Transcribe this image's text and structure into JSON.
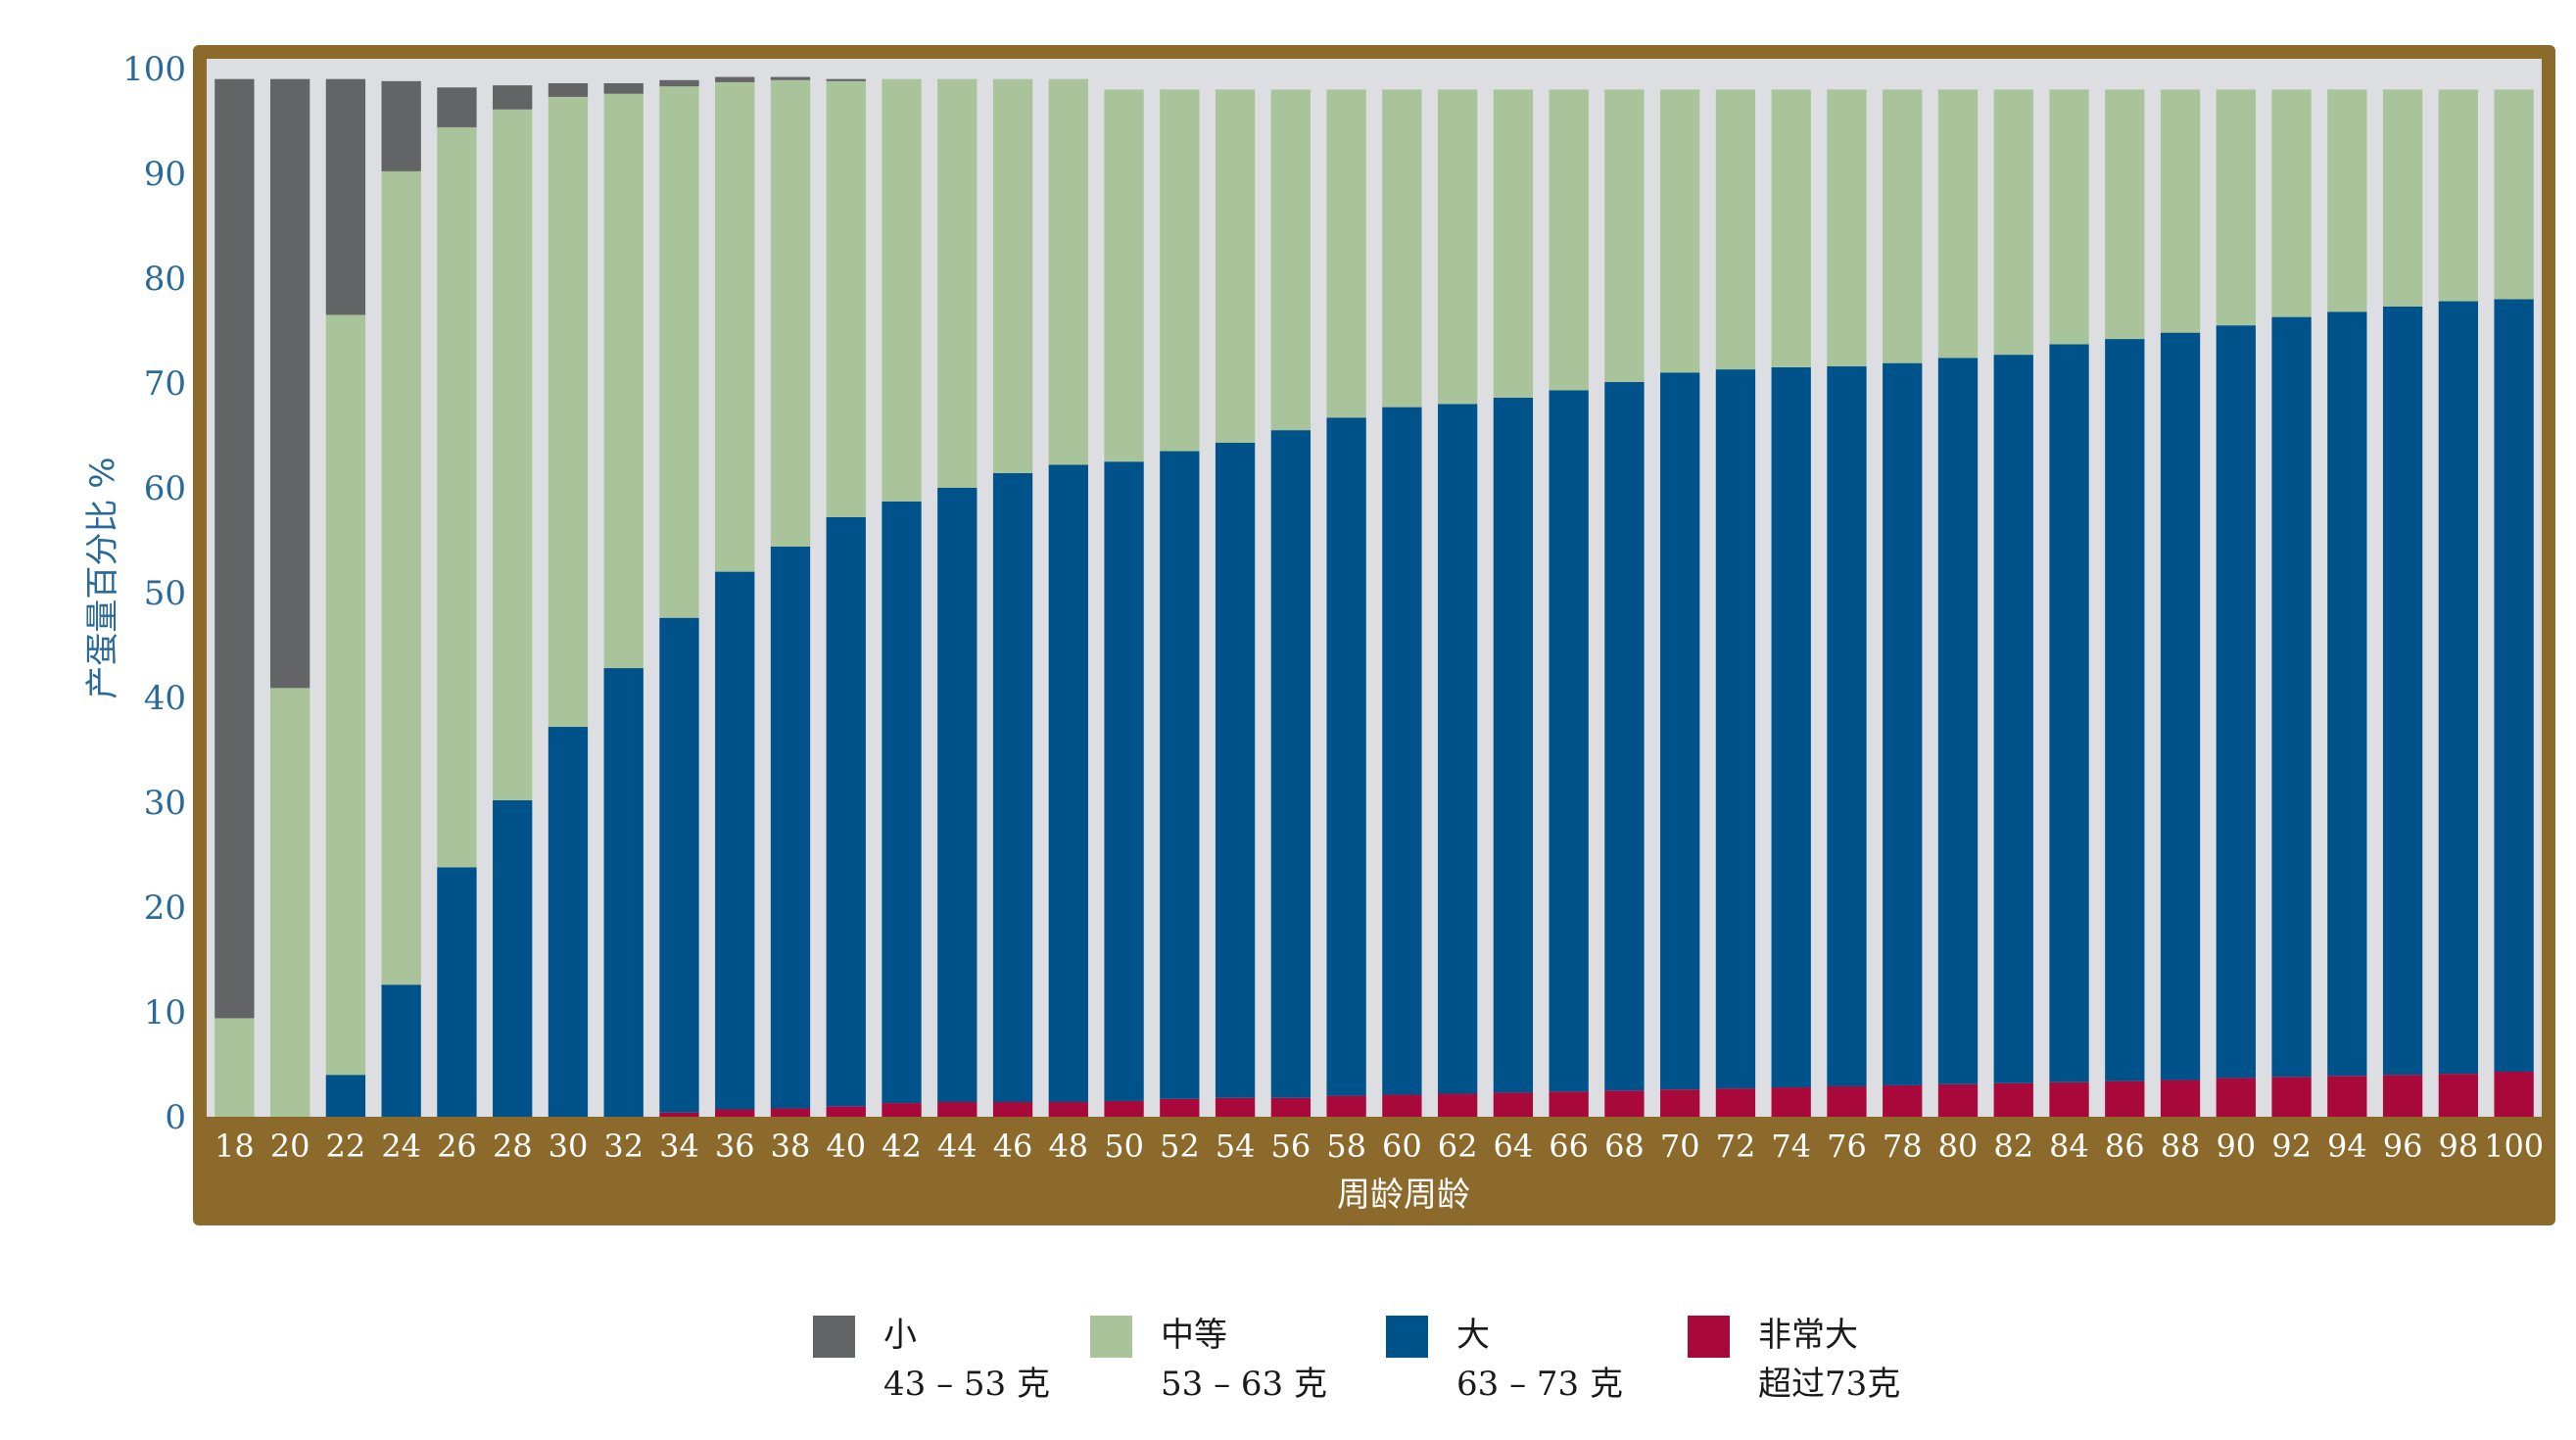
{
  "colors": {
    "small": "#636466",
    "medium": "#a9c49a",
    "large": "#00538a",
    "xlarge": "#a8083a",
    "frame": "#8b6a2b",
    "plot_bg": "#dcdee2",
    "axis_text": "#2a6a9a"
  },
  "chart_data": {
    "type": "bar",
    "stacked": true,
    "xlabel": "周龄周龄",
    "ylabel": "产蛋量百分比 %",
    "ylim": [
      0,
      100
    ],
    "yticks": [
      0,
      10,
      20,
      30,
      40,
      50,
      60,
      70,
      80,
      90,
      100
    ],
    "grid": false,
    "legend_position": "bottom",
    "categories": [
      "18",
      "20",
      "22",
      "24",
      "26",
      "28",
      "30",
      "32",
      "34",
      "36",
      "38",
      "40",
      "42",
      "44",
      "46",
      "48",
      "50",
      "52",
      "54",
      "56",
      "58",
      "60",
      "62",
      "64",
      "66",
      "68",
      "70",
      "72",
      "74",
      "76",
      "78",
      "80",
      "82",
      "84",
      "86",
      "88",
      "90",
      "92",
      "94",
      "96",
      "98",
      "100"
    ],
    "series": [
      {
        "name": "非常大",
        "color_key": "xlarge",
        "values": [
          0,
          0,
          0,
          0,
          0,
          0,
          0,
          0,
          0.4,
          0.7,
          0.8,
          1.0,
          1.3,
          1.4,
          1.4,
          1.4,
          1.5,
          1.7,
          1.8,
          1.8,
          2.0,
          2.1,
          2.2,
          2.3,
          2.4,
          2.5,
          2.6,
          2.7,
          2.8,
          2.9,
          3.0,
          3.1,
          3.2,
          3.3,
          3.4,
          3.5,
          3.7,
          3.8,
          3.9,
          4.0,
          4.1,
          4.3
        ]
      },
      {
        "name": "大",
        "color_key": "large",
        "values": [
          0,
          0,
          4.0,
          12.6,
          23.8,
          30.2,
          37.2,
          42.8,
          47.2,
          51.3,
          53.6,
          56.2,
          57.4,
          58.6,
          60.0,
          60.8,
          61.0,
          61.8,
          62.5,
          63.7,
          64.7,
          65.6,
          65.8,
          66.3,
          66.9,
          67.6,
          68.4,
          68.6,
          68.7,
          68.7,
          68.9,
          69.3,
          69.5,
          70.4,
          70.8,
          71.3,
          71.8,
          72.5,
          72.9,
          73.3,
          73.7,
          73.7
        ]
      },
      {
        "name": "中等",
        "color_key": "medium",
        "values": [
          9.4,
          40.9,
          72.5,
          77.6,
          70.6,
          65.9,
          60.1,
          54.8,
          50.7,
          46.7,
          44.5,
          41.6,
          40.3,
          39.0,
          37.6,
          36.8,
          35.5,
          34.5,
          33.7,
          32.5,
          31.3,
          30.3,
          30.0,
          29.4,
          28.7,
          27.9,
          27.0,
          26.7,
          26.5,
          26.4,
          26.1,
          25.6,
          25.3,
          24.3,
          23.8,
          23.2,
          22.5,
          21.7,
          21.2,
          20.7,
          20.2,
          20.0
        ]
      },
      {
        "name": "小",
        "color_key": "small",
        "values": [
          89.6,
          58.1,
          22.5,
          8.6,
          3.8,
          2.3,
          1.3,
          1.0,
          0.6,
          0.5,
          0.3,
          0.2,
          0,
          0,
          0,
          0,
          0,
          0,
          0,
          0,
          0,
          0,
          0,
          0,
          0,
          0,
          0,
          0,
          0,
          0,
          0,
          0,
          0,
          0,
          0,
          0,
          0,
          0,
          0,
          0,
          0,
          0
        ]
      }
    ]
  },
  "legend": {
    "items": [
      {
        "color_key": "small",
        "name": "小",
        "range": "43 – 53 克"
      },
      {
        "color_key": "medium",
        "name": "中等",
        "range": "53 – 63 克"
      },
      {
        "color_key": "large",
        "name": "大",
        "range": "63 – 73 克"
      },
      {
        "color_key": "xlarge",
        "name": "非常大",
        "range": "超过73克"
      }
    ]
  }
}
